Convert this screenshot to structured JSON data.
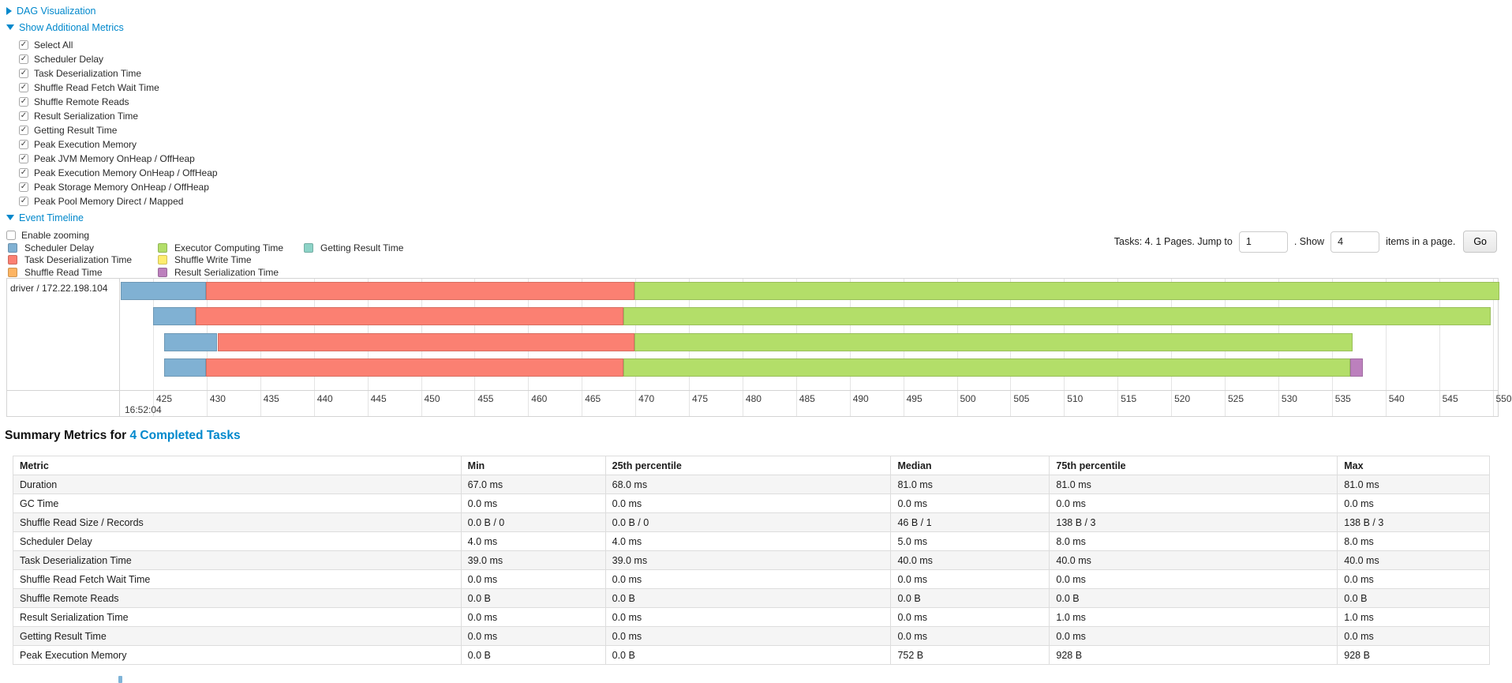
{
  "controls": {
    "dag": {
      "label": "DAG Visualization"
    },
    "metrics_toggle": {
      "label": "Show Additional Metrics"
    },
    "checkboxes": [
      {
        "label": "Select All",
        "checked": true
      },
      {
        "label": "Scheduler Delay",
        "checked": true
      },
      {
        "label": "Task Deserialization Time",
        "checked": true
      },
      {
        "label": "Shuffle Read Fetch Wait Time",
        "checked": true
      },
      {
        "label": "Shuffle Remote Reads",
        "checked": true
      },
      {
        "label": "Result Serialization Time",
        "checked": true
      },
      {
        "label": "Getting Result Time",
        "checked": true
      },
      {
        "label": "Peak Execution Memory",
        "checked": true
      },
      {
        "label": "Peak JVM Memory OnHeap / OffHeap",
        "checked": true
      },
      {
        "label": "Peak Execution Memory OnHeap / OffHeap",
        "checked": true
      },
      {
        "label": "Peak Storage Memory OnHeap / OffHeap",
        "checked": true
      },
      {
        "label": "Peak Pool Memory Direct / Mapped",
        "checked": true
      }
    ],
    "event_timeline": {
      "label": "Event Timeline"
    },
    "enable_zooming": {
      "label": "Enable zooming",
      "checked": false
    }
  },
  "legend": {
    "columns": [
      [
        {
          "key": "scheduler_delay",
          "label": "Scheduler Delay"
        },
        {
          "key": "task_deserialization",
          "label": "Task Deserialization Time"
        },
        {
          "key": "shuffle_read",
          "label": "Shuffle Read Time"
        }
      ],
      [
        {
          "key": "executor_computing",
          "label": "Executor Computing Time"
        },
        {
          "key": "shuffle_write",
          "label": "Shuffle Write Time"
        },
        {
          "key": "result_serialization",
          "label": "Result Serialization Time"
        }
      ],
      [
        {
          "key": "getting_result",
          "label": "Getting Result Time"
        }
      ]
    ]
  },
  "pagination": {
    "summary_text": "Tasks: 4. 1 Pages. Jump to",
    "jump_value": "1",
    "show_text": ". Show",
    "show_value": "4",
    "items_text": "items in a page.",
    "go_label": "Go"
  },
  "chart_data": {
    "type": "timeline",
    "executor_label": "driver / 172.22.198.104",
    "colors": {
      "scheduler_delay": "#80B1D3",
      "task_deserialization": "#FB8072",
      "shuffle_read": "#FDB462",
      "executor_computing": "#B3DE69",
      "shuffle_write": "#FFED6F",
      "result_serialization": "#BC80BD",
      "getting_result": "#8DD3C7"
    },
    "axis": {
      "tick_start": 425,
      "tick_end": 550,
      "tick_step": 5,
      "time_label": "16:52:04",
      "domain_note": "seconds within 16:52, left edge ~422, right edge ~550.6"
    },
    "tasks": [
      {
        "row": 1,
        "segments": [
          {
            "key": "scheduler_delay",
            "start": 422.0,
            "end": 429.9
          },
          {
            "key": "task_deserialization",
            "start": 429.9,
            "end": 469.9
          },
          {
            "key": "executor_computing",
            "start": 469.9,
            "end": 550.6
          }
        ]
      },
      {
        "row": 2,
        "segments": [
          {
            "key": "scheduler_delay",
            "start": 425.0,
            "end": 429.0
          },
          {
            "key": "task_deserialization",
            "start": 429.0,
            "end": 468.9
          },
          {
            "key": "executor_computing",
            "start": 468.9,
            "end": 549.8
          }
        ]
      },
      {
        "row": 3,
        "segments": [
          {
            "key": "scheduler_delay",
            "start": 426.0,
            "end": 431.0
          },
          {
            "key": "task_deserialization",
            "start": 431.0,
            "end": 469.9
          },
          {
            "key": "executor_computing",
            "start": 469.9,
            "end": 536.9
          }
        ]
      },
      {
        "row": 4,
        "segments": [
          {
            "key": "scheduler_delay",
            "start": 426.0,
            "end": 429.9
          },
          {
            "key": "task_deserialization",
            "start": 429.9,
            "end": 468.9
          },
          {
            "key": "executor_computing",
            "start": 468.9,
            "end": 536.7
          },
          {
            "key": "result_serialization",
            "start": 536.7,
            "end": 537.9
          }
        ]
      }
    ]
  },
  "summary": {
    "heading_prefix": "Summary Metrics for ",
    "heading_link": "4 Completed Tasks",
    "table": {
      "headers": [
        "Metric",
        "Min",
        "25th percentile",
        "Median",
        "75th percentile",
        "Max"
      ],
      "col_widths_pct": [
        30.34,
        9.78,
        19.34,
        10.74,
        19.5,
        10.3
      ],
      "rows": [
        [
          "Duration",
          "67.0 ms",
          "68.0 ms",
          "81.0 ms",
          "81.0 ms",
          "81.0 ms"
        ],
        [
          "GC Time",
          "0.0 ms",
          "0.0 ms",
          "0.0 ms",
          "0.0 ms",
          "0.0 ms"
        ],
        [
          "Shuffle Read Size / Records",
          "0.0 B / 0",
          "0.0 B / 0",
          "46 B / 1",
          "138 B / 3",
          "138 B / 3"
        ],
        [
          "Scheduler Delay",
          "4.0 ms",
          "4.0 ms",
          "5.0 ms",
          "8.0 ms",
          "8.0 ms"
        ],
        [
          "Task Deserialization Time",
          "39.0 ms",
          "39.0 ms",
          "40.0 ms",
          "40.0 ms",
          "40.0 ms"
        ],
        [
          "Shuffle Read Fetch Wait Time",
          "0.0 ms",
          "0.0 ms",
          "0.0 ms",
          "0.0 ms",
          "0.0 ms"
        ],
        [
          "Shuffle Remote Reads",
          "0.0 B",
          "0.0 B",
          "0.0 B",
          "0.0 B",
          "0.0 B"
        ],
        [
          "Result Serialization Time",
          "0.0 ms",
          "0.0 ms",
          "0.0 ms",
          "1.0 ms",
          "1.0 ms"
        ],
        [
          "Getting Result Time",
          "0.0 ms",
          "0.0 ms",
          "0.0 ms",
          "0.0 ms",
          "0.0 ms"
        ],
        [
          "Peak Execution Memory",
          "0.0 B",
          "0.0 B",
          "752 B",
          "928 B",
          "928 B"
        ]
      ]
    }
  }
}
